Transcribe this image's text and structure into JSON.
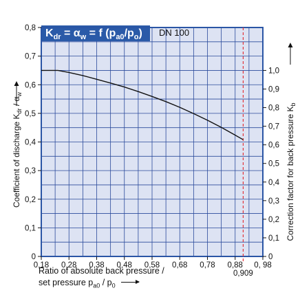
{
  "chart_data": {
    "type": "line",
    "title_parts": {
      "k": "K",
      "k_sub": "dr",
      "eq": " = ",
      "alpha": "α",
      "alpha_sub": "w",
      "eq2": " = f (p",
      "p_sub": "a0",
      "slash": "/p",
      "p2_sub": "o",
      "close": ")"
    },
    "subtitle": "DN 100",
    "x_ticks": [
      "0,18",
      "0,28",
      "0,38",
      "0,48",
      "0,58",
      "0,68",
      "0,78",
      "0,88",
      "0, 98"
    ],
    "x_tick_values": [
      0.18,
      0.28,
      0.38,
      0.48,
      0.58,
      0.68,
      0.78,
      0.88,
      0.98
    ],
    "xlim": [
      0.18,
      0.98
    ],
    "y_left_ticks": [
      "0",
      "0,1",
      "0,2",
      "0,3",
      "0,4",
      "0,5",
      "0,6",
      "0,7",
      "0,8"
    ],
    "y_left_values": [
      0,
      0.1,
      0.2,
      0.3,
      0.4,
      0.5,
      0.6,
      0.7,
      0.8
    ],
    "ylim": [
      0,
      0.8
    ],
    "y_right_ticks": [
      "0",
      "0,1",
      "0,2",
      "0,3",
      "0,4",
      "0,5",
      "0,6",
      "0,7",
      "0,8",
      "0,9",
      "1,0"
    ],
    "y_right_values": [
      0,
      0.1,
      0.2,
      0.3,
      0.4,
      0.5,
      0.6,
      0.7,
      0.8,
      0.9,
      1.0
    ],
    "y_right_scale": 0.65,
    "ylabel_left": "Coefficient of discharge K",
    "ylabel_left_sub1": "dr",
    "ylabel_left_mid": " / α",
    "ylabel_left_sub2": "w",
    "ylabel_right": "Correction factor for back pressure K",
    "ylabel_right_sub": "b",
    "xlabel_line1": "Ratio of absolute back pressure /",
    "xlabel_line2_a": "set pressure p",
    "xlabel_line2_sub1": "a0",
    "xlabel_line2_b": " / p",
    "xlabel_line2_sub2": "0",
    "marker_value": 0.909,
    "marker_label": "0,909",
    "series": [
      {
        "x": [
          0.18,
          0.24,
          0.28,
          0.33,
          0.38,
          0.43,
          0.48,
          0.53,
          0.58,
          0.63,
          0.68,
          0.73,
          0.78,
          0.83,
          0.88,
          0.909
        ],
        "y": [
          0.65,
          0.65,
          0.643,
          0.632,
          0.619,
          0.606,
          0.592,
          0.576,
          0.559,
          0.541,
          0.521,
          0.499,
          0.476,
          0.451,
          0.424,
          0.408
        ]
      }
    ],
    "grid": true,
    "colors": {
      "plot_bg": "#dde3f3",
      "grid": "#2a4a9b",
      "frame": "#2a55a5",
      "title_bg": "#2a5aa8",
      "title_fg": "#ffffff",
      "line": "#111111",
      "marker": "#e2333b"
    }
  }
}
